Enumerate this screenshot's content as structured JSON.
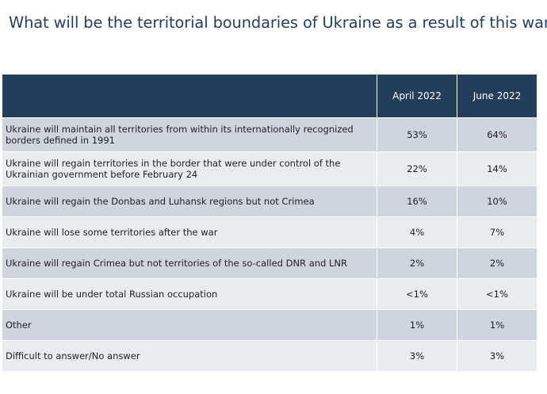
{
  "title": "What will be the territorial boundaries of Ukraine as a result of this war?",
  "chart_data": {
    "type": "table",
    "title": "What will be the territorial boundaries of Ukraine as a result of this war?",
    "columns": [
      "April 2022",
      "June 2022"
    ],
    "rows": [
      {
        "label": "Ukraine will maintain all territories from within its internationally  recognized borders defined in 1991",
        "values": [
          "53%",
          "64%"
        ]
      },
      {
        "label": "Ukraine will regain territories in the border that were under control of the Ukrainian government before February 24",
        "values": [
          "22%",
          "14%"
        ]
      },
      {
        "label": "Ukraine will regain the Donbas and Luhansk regions but not Crimea",
        "values": [
          "16%",
          "10%"
        ]
      },
      {
        "label": "Ukraine will lose some territories after the war",
        "values": [
          "4%",
          "7%"
        ]
      },
      {
        "label": "Ukraine will regain Crimea but not territories of the so-called DNR and LNR",
        "values": [
          "2%",
          "2%"
        ]
      },
      {
        "label": "Ukraine will be under total Russian occupation",
        "values": [
          "<1%",
          "<1%"
        ]
      },
      {
        "label": "Other",
        "values": [
          "1%",
          "1%"
        ]
      },
      {
        "label": "Difficult to answer/No answer",
        "values": [
          "3%",
          "3%"
        ]
      }
    ]
  },
  "colors": {
    "title": "#243f60",
    "header_bg": "#223e5c",
    "row_dark": "#cfd5df",
    "row_light": "#e8ebf0"
  }
}
